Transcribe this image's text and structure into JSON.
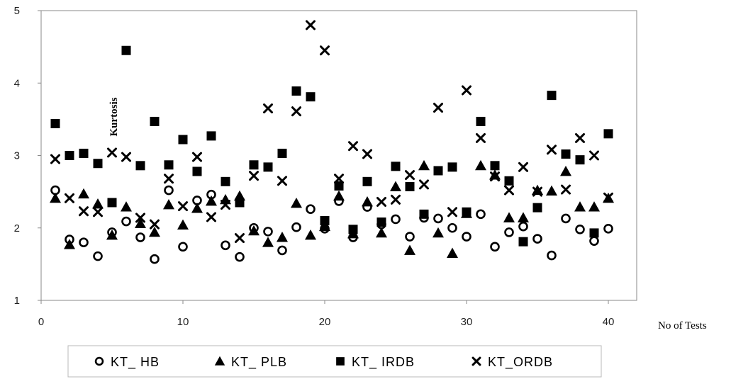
{
  "chart_data": {
    "type": "scatter",
    "xlabel": "No of Tests",
    "ylabel": "Kurtosis",
    "xlim": [
      0,
      42
    ],
    "ylim": [
      1,
      5
    ],
    "xticks": [
      "0",
      "10",
      "20",
      "30",
      "40"
    ],
    "yticks": [
      "1",
      "2",
      "3",
      "4",
      "5"
    ],
    "grid": false,
    "legend": "bottom",
    "series": [
      {
        "name": "KT_ HB",
        "marker": "circle",
        "color": "#000000",
        "x": [
          1,
          2,
          3,
          4,
          5,
          6,
          7,
          8,
          9,
          10,
          11,
          12,
          13,
          14,
          15,
          16,
          17,
          18,
          19,
          20,
          21,
          22,
          23,
          24,
          25,
          26,
          27,
          28,
          29,
          30,
          31,
          32,
          33,
          34,
          35,
          36,
          37,
          38,
          39,
          40
        ],
        "y": [
          2.52,
          1.84,
          1.8,
          1.61,
          1.94,
          2.09,
          1.87,
          1.57,
          2.52,
          1.74,
          2.38,
          2.46,
          1.76,
          1.6,
          2.0,
          1.95,
          1.69,
          2.01,
          2.26,
          1.99,
          2.37,
          1.87,
          2.29,
          2.05,
          2.12,
          1.88,
          2.14,
          2.13,
          2.0,
          1.88,
          2.19,
          1.74,
          1.94,
          2.02,
          1.85,
          1.62,
          2.13,
          1.98,
          1.82,
          1.99
        ]
      },
      {
        "name": "KT_ PLB",
        "marker": "triangle",
        "color": "#000000",
        "x": [
          1,
          2,
          3,
          4,
          5,
          6,
          7,
          8,
          9,
          10,
          11,
          12,
          13,
          14,
          15,
          16,
          17,
          18,
          19,
          20,
          21,
          22,
          23,
          24,
          25,
          26,
          27,
          28,
          29,
          30,
          31,
          32,
          33,
          34,
          35,
          36,
          37,
          38,
          39,
          40
        ],
        "y": [
          2.41,
          1.77,
          2.47,
          2.33,
          1.9,
          2.29,
          2.06,
          1.94,
          2.32,
          2.04,
          2.27,
          2.37,
          2.39,
          2.44,
          1.96,
          1.8,
          1.87,
          2.34,
          1.9,
          2.02,
          2.44,
          1.92,
          2.36,
          1.93,
          2.57,
          1.69,
          2.86,
          1.93,
          1.65,
          2.2,
          2.86,
          2.73,
          2.14,
          2.14,
          2.52,
          2.51,
          2.78,
          2.29,
          2.29,
          2.41
        ]
      },
      {
        "name": "KT_ IRDB",
        "marker": "square",
        "color": "#000000",
        "x": [
          1,
          2,
          3,
          4,
          5,
          6,
          7,
          8,
          9,
          10,
          11,
          12,
          13,
          14,
          15,
          16,
          17,
          18,
          19,
          20,
          21,
          22,
          23,
          24,
          25,
          26,
          27,
          28,
          29,
          30,
          31,
          32,
          33,
          34,
          35,
          36,
          37,
          38,
          39,
          40
        ],
        "y": [
          3.44,
          3.0,
          3.03,
          2.89,
          2.35,
          4.45,
          2.86,
          3.47,
          2.87,
          3.22,
          2.78,
          3.27,
          2.64,
          2.35,
          2.87,
          2.84,
          3.03,
          3.89,
          3.81,
          2.1,
          2.58,
          1.98,
          2.64,
          2.08,
          2.85,
          2.57,
          2.19,
          2.79,
          2.84,
          2.22,
          3.47,
          2.86,
          2.65,
          1.81,
          2.28,
          3.83,
          3.02,
          2.94,
          1.93,
          3.3
        ]
      },
      {
        "name": "KT_ORDB",
        "marker": "cross",
        "color": "#000000",
        "x": [
          1,
          2,
          3,
          4,
          5,
          6,
          7,
          8,
          9,
          10,
          11,
          12,
          13,
          14,
          15,
          16,
          17,
          18,
          19,
          20,
          21,
          22,
          23,
          24,
          25,
          26,
          27,
          28,
          29,
          30,
          31,
          32,
          33,
          34,
          35,
          36,
          37,
          38,
          39,
          40
        ],
        "y": [
          2.95,
          2.41,
          2.23,
          2.22,
          3.04,
          2.98,
          2.14,
          2.05,
          2.68,
          2.3,
          2.98,
          2.15,
          2.32,
          1.86,
          2.72,
          3.65,
          2.65,
          3.61,
          4.8,
          4.45,
          2.68,
          3.13,
          3.02,
          2.36,
          2.39,
          2.73,
          2.6,
          3.66,
          2.22,
          3.9,
          3.24,
          2.71,
          2.52,
          2.84,
          2.5,
          3.08,
          2.53,
          3.24,
          3.0,
          2.42
        ]
      }
    ]
  }
}
